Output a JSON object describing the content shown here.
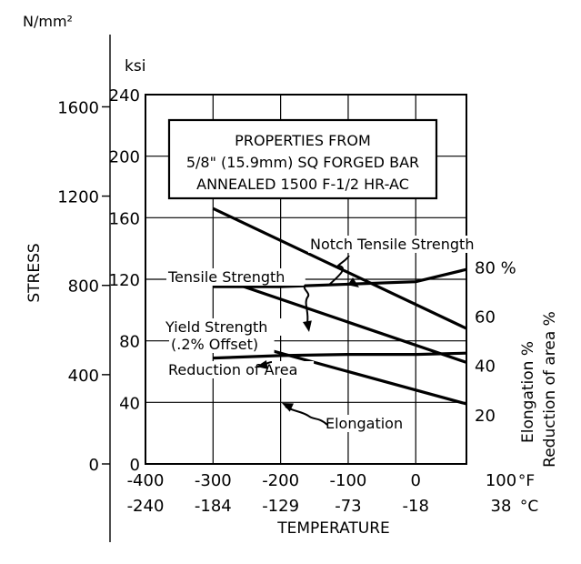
{
  "chart_data": {
    "type": "line",
    "title_box": {
      "lines": [
        "PROPERTIES FROM",
        "5/8\" (15.9mm) SQ FORGED BAR",
        "ANNEALED 1500 F-1/2 HR-AC"
      ]
    },
    "axes": {
      "y_outer_unit": "N/mm²",
      "y_outer_ticks": [
        "0",
        "400",
        "800",
        "1200",
        "1600"
      ],
      "y_ksi_unit": "ksi",
      "y_ksi_ticks": [
        "0",
        "40",
        "80",
        "120",
        "160",
        "200",
        "240"
      ],
      "ylabel": "STRESS",
      "ylim": [
        0,
        240
      ],
      "x_f_ticks": [
        "-400",
        "-300",
        "-200",
        "-100",
        "0",
        "100"
      ],
      "x_f_unit": "°F",
      "x_c_ticks": [
        "-240",
        "-184",
        "-129",
        "-73",
        "-18",
        "38"
      ],
      "x_c_unit": "°C",
      "xlabel": "TEMPERATURE",
      "xlim": [
        -400,
        75
      ],
      "right_ticks": [
        "20",
        "40",
        "60",
        "80 %"
      ],
      "right_labels": [
        "Elongation %",
        "Reduction of area %"
      ]
    },
    "series": [
      {
        "name": "Notch Tensile Strength",
        "axis": "ksi",
        "x": [
          -300,
          75
        ],
        "y": [
          166,
          88
        ]
      },
      {
        "name": "Tensile Strength",
        "axis": "ksi",
        "x": [
          -300,
          75
        ],
        "y": [
          122,
          66
        ]
      },
      {
        "name": "Yield Strength (.2% Offset)",
        "axis": "ksi",
        "x": [
          -300,
          75
        ],
        "y": [
          84,
          39
        ]
      },
      {
        "name": "Reduction of Area",
        "axis": "percent",
        "x": [
          -300,
          -200,
          -100,
          0,
          75
        ],
        "y": [
          72,
          72,
          73,
          74,
          79
        ]
      },
      {
        "name": "Elongation",
        "axis": "percent",
        "x": [
          -300,
          -200,
          -100,
          0,
          75
        ],
        "y": [
          43,
          44,
          44.5,
          44.5,
          45
        ]
      }
    ]
  }
}
